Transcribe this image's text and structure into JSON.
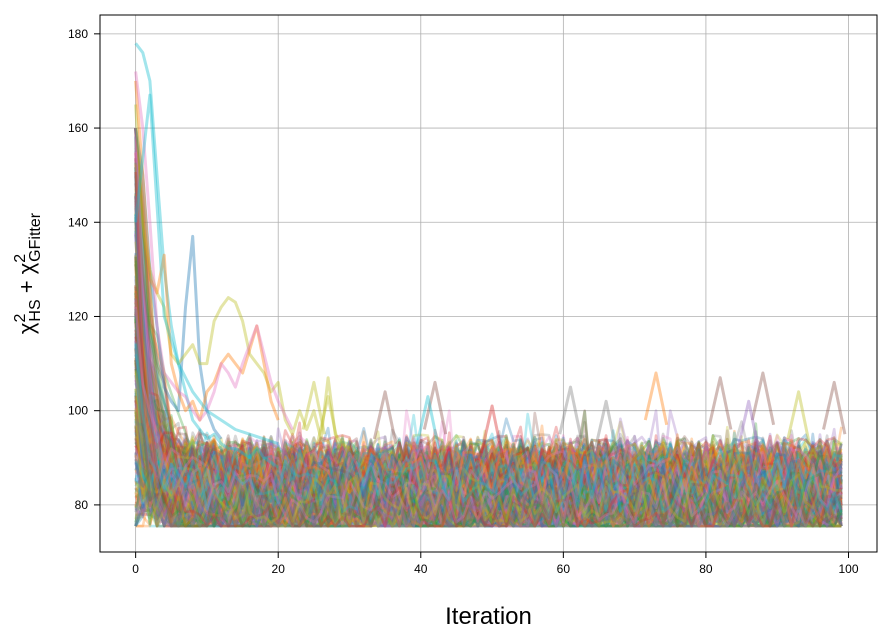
{
  "chart_data": {
    "type": "line",
    "title": "",
    "xlabel": "Iteration",
    "ylabel": {
      "parts": [
        {
          "text": "χ",
          "script": ""
        },
        {
          "text": "2",
          "script": "sup"
        },
        {
          "text": "HS",
          "script": "sub"
        },
        {
          "text": " + χ",
          "script": ""
        },
        {
          "text": "2",
          "script": "sup"
        },
        {
          "text": "GFitter",
          "script": "sub"
        }
      ]
    },
    "xlim": [
      -5,
      104
    ],
    "ylim": [
      70,
      184
    ],
    "xticks": [
      0,
      20,
      40,
      60,
      80,
      100
    ],
    "yticks": [
      80,
      100,
      120,
      140,
      160,
      180
    ],
    "grid": true,
    "legend": "none",
    "iterations": [
      0,
      99
    ],
    "series_count": 300,
    "colors": [
      "#1f77b4",
      "#ff7f0e",
      "#2ca02c",
      "#d62728",
      "#9467bd",
      "#8c564b",
      "#e377c2",
      "#7f7f7f",
      "#bcbd22",
      "#17becf"
    ],
    "line_opacity": 0.3,
    "floor_value": 76,
    "typical_band": [
      76,
      97
    ],
    "highlighted_series": [
      {
        "x": [
          0,
          1,
          2,
          3,
          4,
          5,
          6,
          7,
          8,
          9,
          10,
          11,
          12,
          13,
          14,
          15,
          16,
          17,
          18,
          19,
          20
        ],
        "y": [
          178,
          176,
          170,
          150,
          130,
          118,
          110,
          104,
          98,
          96,
          94,
          95,
          93,
          92,
          92,
          91,
          90,
          92,
          90,
          89,
          88
        ],
        "color": "#17becf"
      },
      {
        "x": [
          0,
          1,
          2,
          3,
          4,
          5,
          6,
          7,
          8,
          9,
          10,
          11,
          12
        ],
        "y": [
          160,
          150,
          130,
          118,
          105,
          102,
          100,
          122,
          137,
          110,
          100,
          96,
          94
        ],
        "color": "#1f77b4"
      },
      {
        "x": [
          0,
          1,
          2,
          3,
          4,
          5,
          6,
          7,
          8,
          9,
          10,
          11,
          12,
          13,
          14,
          15,
          16,
          17,
          18,
          19,
          20,
          21,
          22,
          23,
          24,
          25,
          26,
          27,
          28,
          29,
          30
        ],
        "y": [
          165,
          140,
          130,
          125,
          122,
          112,
          110,
          112,
          114,
          110,
          110,
          119,
          122,
          124,
          123,
          119,
          112,
          110,
          108,
          104,
          106,
          98,
          95,
          100,
          96,
          100,
          94,
          107,
          95,
          93,
          92
        ],
        "color": "#bcbd22"
      },
      {
        "x": [
          0,
          1,
          2,
          3,
          4,
          5,
          6,
          7,
          8,
          9,
          10,
          11,
          12,
          13,
          14,
          15,
          16,
          17,
          18,
          19,
          20
        ],
        "y": [
          170,
          150,
          128,
          125,
          133,
          110,
          104,
          100,
          102,
          98,
          104,
          106,
          110,
          112,
          110,
          108,
          113,
          118,
          110,
          102,
          98
        ],
        "color": "#ff7f0e"
      },
      {
        "x": [
          0,
          1,
          2,
          3,
          4,
          5,
          6,
          7,
          8,
          9,
          10,
          11,
          12,
          13,
          14,
          15,
          16,
          17,
          18,
          19,
          20,
          21,
          22
        ],
        "y": [
          172,
          160,
          140,
          118,
          108,
          106,
          104,
          103,
          100,
          98,
          100,
          104,
          110,
          108,
          105,
          110,
          114,
          118,
          112,
          106,
          102,
          99,
          96
        ],
        "color": "#e377c2"
      },
      {
        "x": [
          0,
          2,
          4,
          6,
          8,
          10,
          12,
          14,
          16,
          18,
          20
        ],
        "y": [
          140,
          167,
          120,
          110,
          104,
          100,
          98,
          96,
          95,
          94,
          93
        ],
        "color": "#17becf"
      }
    ],
    "peaks": [
      {
        "x": 35,
        "y": 104,
        "color": "#8c564b"
      },
      {
        "x": 42,
        "y": 106,
        "color": "#8c564b"
      },
      {
        "x": 41,
        "y": 103,
        "color": "#17becf"
      },
      {
        "x": 61,
        "y": 105,
        "color": "#7f7f7f"
      },
      {
        "x": 73,
        "y": 108,
        "color": "#ff7f0e"
      },
      {
        "x": 82,
        "y": 107,
        "color": "#8c564b"
      },
      {
        "x": 88,
        "y": 108,
        "color": "#8c564b"
      },
      {
        "x": 93,
        "y": 104,
        "color": "#bcbd22"
      },
      {
        "x": 98,
        "y": 106,
        "color": "#8c564b"
      },
      {
        "x": 86,
        "y": 102,
        "color": "#9467bd"
      },
      {
        "x": 50,
        "y": 101,
        "color": "#d62728"
      },
      {
        "x": 66,
        "y": 102,
        "color": "#7f7f7f"
      },
      {
        "x": 27,
        "y": 103,
        "color": "#bcbd22"
      },
      {
        "x": 25,
        "y": 106,
        "color": "#bcbd22"
      }
    ]
  }
}
